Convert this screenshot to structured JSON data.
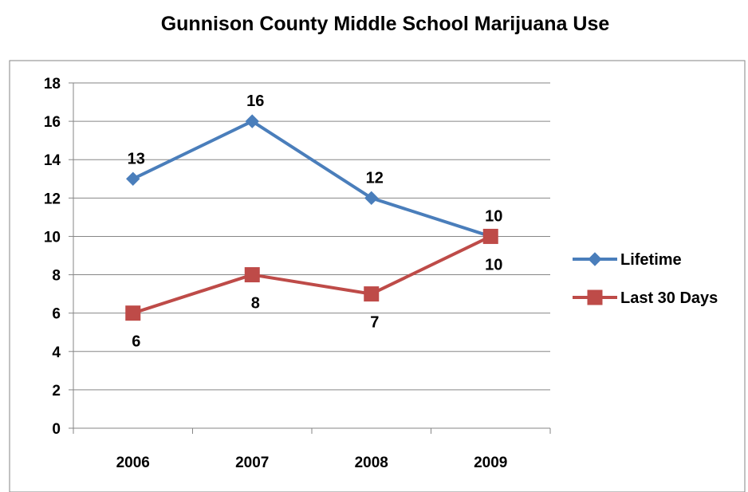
{
  "chart_data": {
    "type": "line",
    "title": "Gunnison County Middle School Marijuana Use",
    "xlabel": "",
    "ylabel": "",
    "categories": [
      "2006",
      "2007",
      "2008",
      "2009"
    ],
    "ylim": [
      0,
      18
    ],
    "yticks": [
      0,
      2,
      4,
      6,
      8,
      10,
      12,
      14,
      16,
      18
    ],
    "grid": true,
    "legend_position": "right",
    "series": [
      {
        "name": "Lifetime",
        "values": [
          13,
          16,
          12,
          10
        ],
        "color": "#4a7ebb",
        "marker": "diamond",
        "labels": [
          "13",
          "16",
          "12",
          "10"
        ],
        "label_position": "above"
      },
      {
        "name": "Last 30 Days",
        "values": [
          6,
          8,
          7,
          10
        ],
        "color": "#be4b48",
        "marker": "square",
        "labels": [
          "6",
          "8",
          "7",
          "10"
        ],
        "label_position": "below"
      }
    ]
  }
}
